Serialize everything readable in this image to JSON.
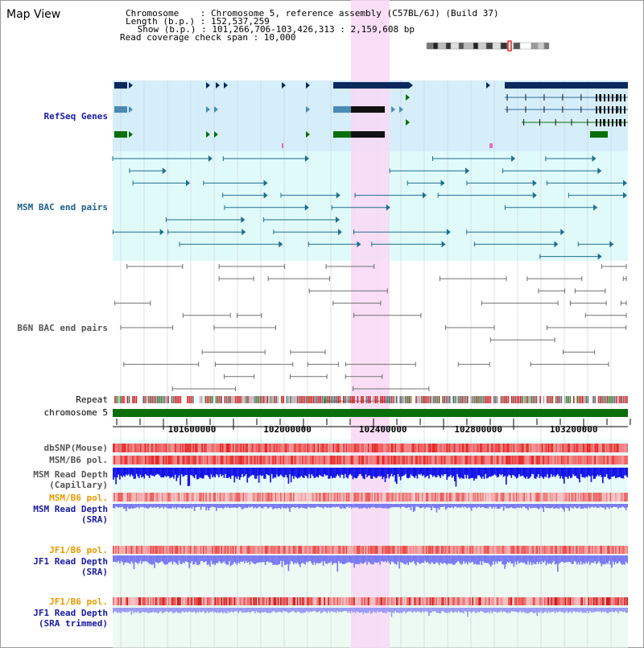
{
  "title": "Map View",
  "info": {
    "chromosome": "Chromosome    : Chromosome 5, reference assembly (C57BL/6J) (Build 37)",
    "length": "Length (b.p.) : 152,537,259",
    "show": " Show (b.p.) : 101,266,706-103,426,313 : 2,159,608 bp",
    "coverage": "Read coverage check span : 10,000"
  },
  "tracks": {
    "refseq": "RefSeq Genes",
    "msm_bac": "MSM BAC end pairs",
    "b6n_bac": "B6N BAC end pairs",
    "repeat": "Repeat",
    "chromosome": "chromosome 5",
    "dbsnp": "dbSNP(Mouse)",
    "msm_b6_pol": "MSM/B6 pol.",
    "msm_depth_cap_1": "MSM Read Depth",
    "msm_depth_cap_2": "(Capillary)",
    "msm_b6_pol_2": "MSM/B6 pol.",
    "msm_depth_sra_1": "MSM Read Depth",
    "msm_depth_sra_2": "(SRA)",
    "jf1_b6_pol": "JF1/B6 pol.",
    "jf1_depth_1": "JF1 Read Depth",
    "jf1_depth_2": "(SRA)",
    "jf1_b6_pol_2": "JF1/B6 pol.",
    "jf1_trim_1": "JF1 Read Depth",
    "jf1_trim_2": "(SRA trimmed)"
  },
  "axis": {
    "ticks": [
      "101600000",
      "102000000",
      "102400000",
      "102800000",
      "103200000"
    ],
    "tick_values": [
      101600000,
      102000000,
      102400000,
      102800000,
      103200000
    ],
    "range": [
      101266706,
      103426313
    ]
  },
  "colors": {
    "refseq_bg": "#d6eefa",
    "msm_bg": "#e0fafa",
    "highlight": "#f8d8f4",
    "chromosome_bar": "#0a6e0a",
    "gene_dark": "#0a2a5c",
    "gene_mid": "#4a8ab4",
    "gene_green": "#0a6e0a",
    "msm_line": "#1f6f8b",
    "b6n_line": "#707070",
    "snp_red": "#e03030",
    "depth_blue": "#1414e6",
    "depth_light": "#7a7af0"
  }
}
